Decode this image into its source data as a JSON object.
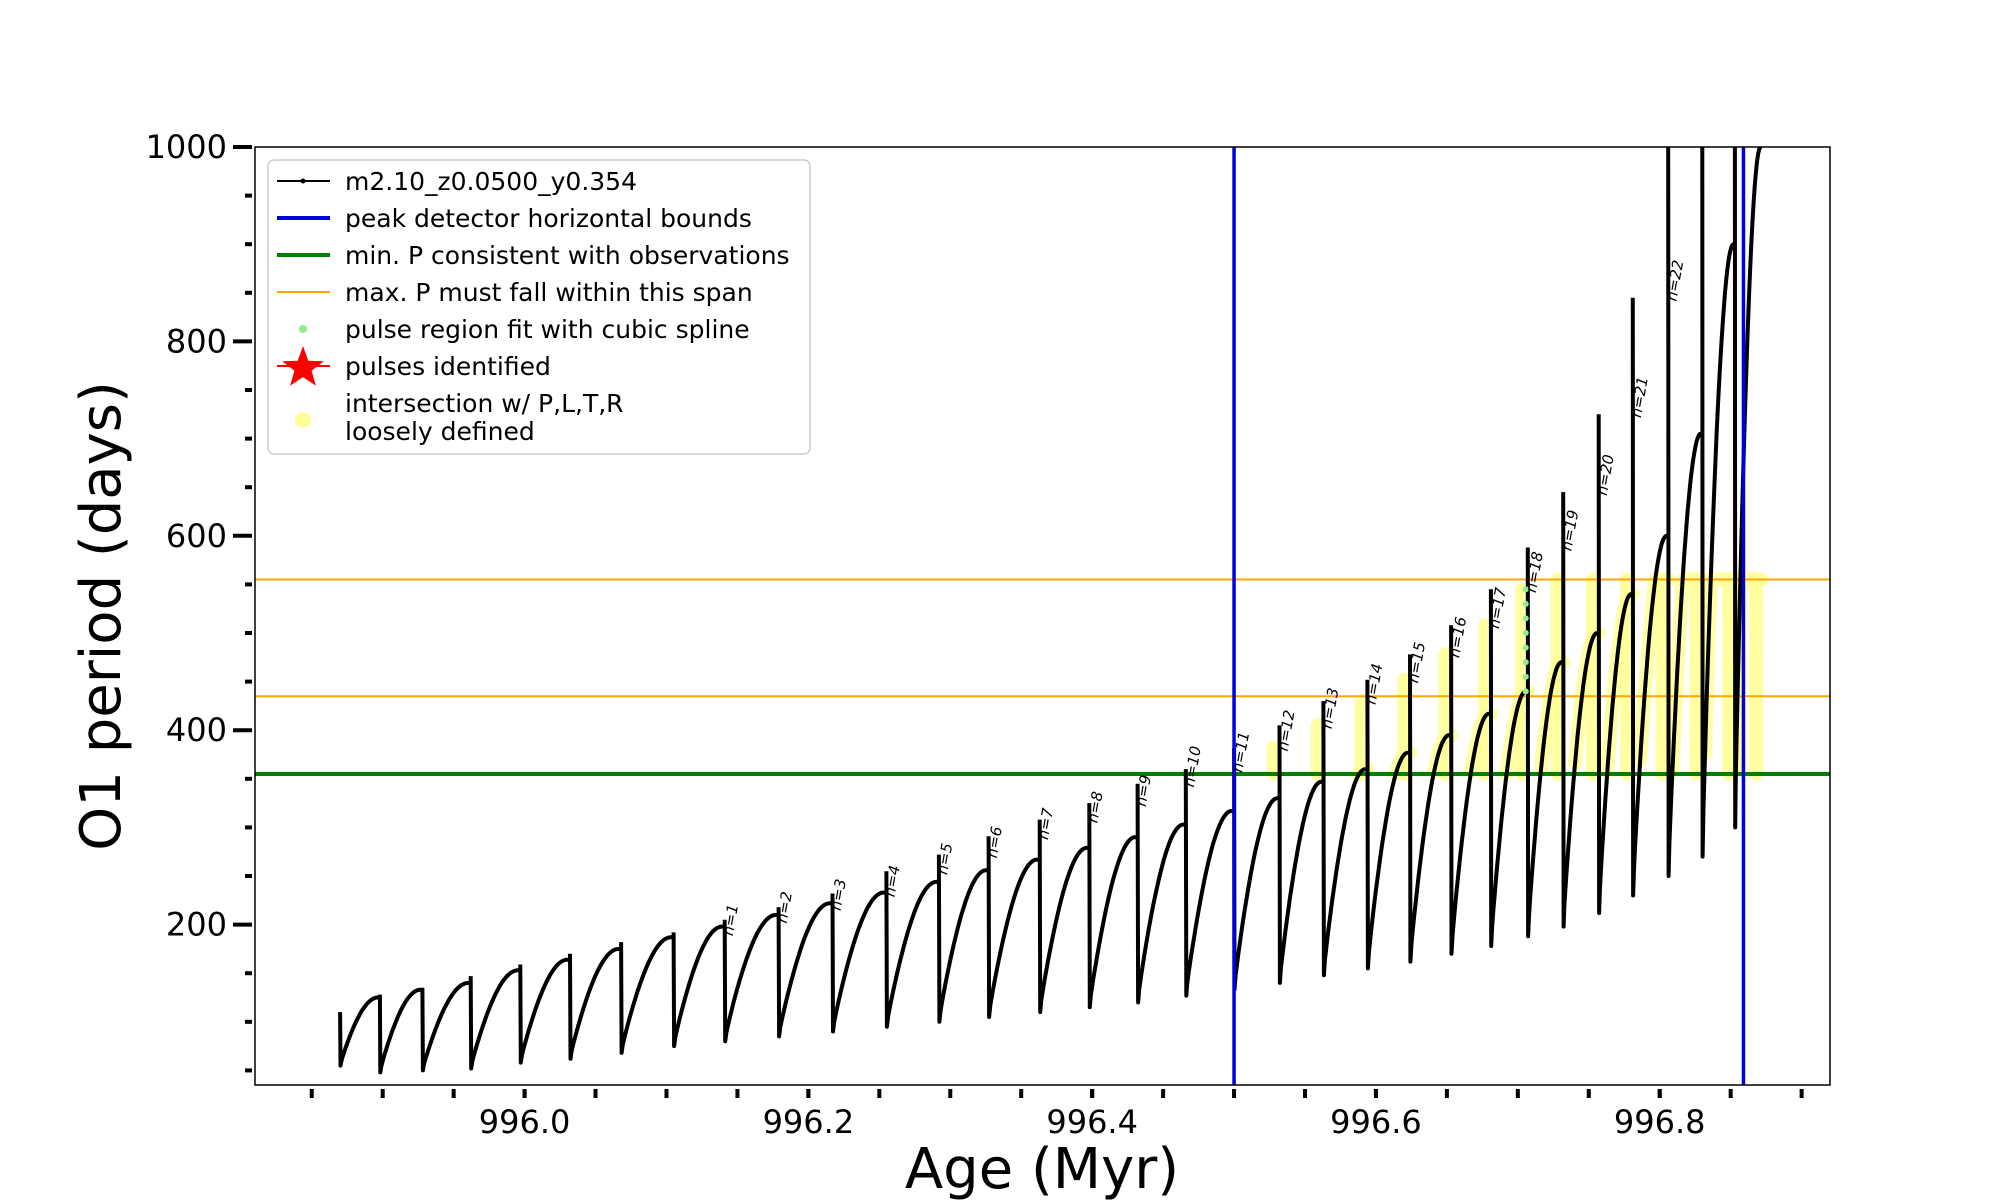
{
  "chart_data": {
    "type": "line",
    "xlabel": "Age (Myr)",
    "ylabel": "O1 period (days)",
    "xlim": [
      995.81,
      996.92
    ],
    "ylim": [
      35,
      1000
    ],
    "x_ticks": [
      996.0,
      996.2,
      996.4,
      996.6,
      996.8
    ],
    "x_tick_labels": [
      "996.0",
      "996.2",
      "996.4",
      "996.6",
      "996.8"
    ],
    "y_ticks": [
      200,
      400,
      600,
      800,
      1000
    ],
    "y_tick_labels": [
      "200",
      "400",
      "600",
      "800",
      "1000"
    ],
    "grid": false,
    "legend_position": "top-left",
    "legend": [
      {
        "label": "m2.10_z0.0500_y0.354",
        "color": "#000000",
        "marker": "line-dot"
      },
      {
        "label": "peak detector horizontal bounds",
        "color": "#0000dd",
        "marker": "line"
      },
      {
        "label": "min. P consistent with observations",
        "color": "#008000",
        "marker": "line"
      },
      {
        "label": "max. P must fall within this span",
        "color": "#ffa500",
        "marker": "thin-line"
      },
      {
        "label": "pulse region fit with cubic spline",
        "color": "#90ee90",
        "marker": "dot"
      },
      {
        "label": "pulses identified",
        "color": "#ff0000",
        "marker": "star"
      },
      {
        "label": "intersection w/ P,L,T,R",
        "label2": "loosely defined",
        "color": "#ffff99",
        "marker": "dot"
      }
    ],
    "vertical_lines": [
      {
        "x": 996.5,
        "color": "#0000dd",
        "name": "peak detector horizontal bounds"
      },
      {
        "x": 996.859,
        "color": "#0000dd",
        "name": "peak detector horizontal bounds"
      }
    ],
    "horizontal_lines": [
      {
        "y": 355,
        "color": "#008000",
        "name": "min. P consistent with observations"
      },
      {
        "y": 435,
        "color": "#ffa500",
        "name": "max. P must fall within this span"
      },
      {
        "y": 555,
        "color": "#ffa500",
        "name": "max. P must fall within this span"
      }
    ],
    "pulses": [
      {
        "n": null,
        "label": "",
        "x_start": 995.87,
        "x_end": 995.898,
        "min": 55,
        "max": 125,
        "spike": 110
      },
      {
        "n": null,
        "label": "",
        "x_start": 995.898,
        "x_end": 995.928,
        "min": 48,
        "max": 133,
        "spike": 128
      },
      {
        "n": null,
        "label": "",
        "x_start": 995.928,
        "x_end": 995.962,
        "min": 50,
        "max": 140,
        "spike": 135
      },
      {
        "n": null,
        "label": "",
        "x_start": 995.962,
        "x_end": 995.997,
        "min": 52,
        "max": 153,
        "spike": 147
      },
      {
        "n": null,
        "label": "",
        "x_start": 995.997,
        "x_end": 996.032,
        "min": 58,
        "max": 164,
        "spike": 159
      },
      {
        "n": null,
        "label": "",
        "x_start": 996.032,
        "x_end": 996.068,
        "min": 62,
        "max": 175,
        "spike": 170
      },
      {
        "n": null,
        "label": "",
        "x_start": 996.068,
        "x_end": 996.105,
        "min": 68,
        "max": 187,
        "spike": 182
      },
      {
        "n": 1,
        "label": "n=1",
        "x_start": 996.105,
        "x_end": 996.141,
        "min": 75,
        "max": 198,
        "spike": 192
      },
      {
        "n": 2,
        "label": "n=2",
        "x_start": 996.141,
        "x_end": 996.179,
        "min": 80,
        "max": 210,
        "spike": 205
      },
      {
        "n": 3,
        "label": "n=3",
        "x_start": 996.179,
        "x_end": 996.217,
        "min": 85,
        "max": 222,
        "spike": 218
      },
      {
        "n": 4,
        "label": "n=4",
        "x_start": 996.217,
        "x_end": 996.255,
        "min": 90,
        "max": 233,
        "spike": 232
      },
      {
        "n": 5,
        "label": "n=5",
        "x_start": 996.255,
        "x_end": 996.292,
        "min": 95,
        "max": 244,
        "spike": 255
      },
      {
        "n": 6,
        "label": "n=6",
        "x_start": 996.292,
        "x_end": 996.327,
        "min": 100,
        "max": 256,
        "spike": 272
      },
      {
        "n": 7,
        "label": "n=7",
        "x_start": 996.327,
        "x_end": 996.363,
        "min": 105,
        "max": 267,
        "spike": 291
      },
      {
        "n": 8,
        "label": "n=8",
        "x_start": 996.363,
        "x_end": 996.398,
        "min": 110,
        "max": 279,
        "spike": 308
      },
      {
        "n": 9,
        "label": "n=9",
        "x_start": 996.398,
        "x_end": 996.432,
        "min": 115,
        "max": 290,
        "spike": 325
      },
      {
        "n": 10,
        "label": "n=10",
        "x_start": 996.432,
        "x_end": 996.466,
        "min": 120,
        "max": 303,
        "spike": 345
      },
      {
        "n": 11,
        "label": "n=11",
        "x_start": 996.466,
        "x_end": 996.5,
        "min": 127,
        "max": 317,
        "spike": 360
      },
      {
        "n": 12,
        "label": "n=12",
        "x_start": 996.5,
        "x_end": 996.532,
        "min": 133,
        "max": 330,
        "spike": 382
      },
      {
        "n": 13,
        "label": "n=13",
        "x_start": 996.532,
        "x_end": 996.563,
        "min": 140,
        "max": 347,
        "spike": 405
      },
      {
        "n": 14,
        "label": "n=14",
        "x_start": 996.563,
        "x_end": 996.594,
        "min": 148,
        "max": 360,
        "spike": 430
      },
      {
        "n": 15,
        "label": "n=15",
        "x_start": 996.594,
        "x_end": 996.624,
        "min": 155,
        "max": 377,
        "spike": 452
      },
      {
        "n": 16,
        "label": "n=16",
        "x_start": 996.624,
        "x_end": 996.653,
        "min": 162,
        "max": 395,
        "spike": 478
      },
      {
        "n": 17,
        "label": "n=17",
        "x_start": 996.653,
        "x_end": 996.681,
        "min": 170,
        "max": 417,
        "spike": 508
      },
      {
        "n": 18,
        "label": "n=18",
        "x_start": 996.681,
        "x_end": 996.707,
        "min": 178,
        "max": 440,
        "spike": 545
      },
      {
        "n": 19,
        "label": "n=19",
        "x_start": 996.707,
        "x_end": 996.732,
        "min": 188,
        "max": 470,
        "spike": 588
      },
      {
        "n": 20,
        "label": "n=20",
        "x_start": 996.732,
        "x_end": 996.757,
        "min": 198,
        "max": 500,
        "spike": 645
      },
      {
        "n": 21,
        "label": "n=21",
        "x_start": 996.757,
        "x_end": 996.781,
        "min": 212,
        "max": 540,
        "spike": 725
      },
      {
        "n": 22,
        "label": "n=22",
        "x_start": 996.781,
        "x_end": 996.806,
        "min": 230,
        "max": 600,
        "spike": 845
      },
      {
        "n": null,
        "label": "",
        "x_start": 996.806,
        "x_end": 996.83,
        "min": 250,
        "max": 705,
        "spike": 1000
      },
      {
        "n": null,
        "label": "",
        "x_start": 996.83,
        "x_end": 996.853,
        "min": 270,
        "max": 900,
        "spike": 1000
      },
      {
        "n": null,
        "label": "",
        "x_start": 996.853,
        "x_end": 996.872,
        "min": 300,
        "max": 1000,
        "spike": 1000
      }
    ]
  }
}
